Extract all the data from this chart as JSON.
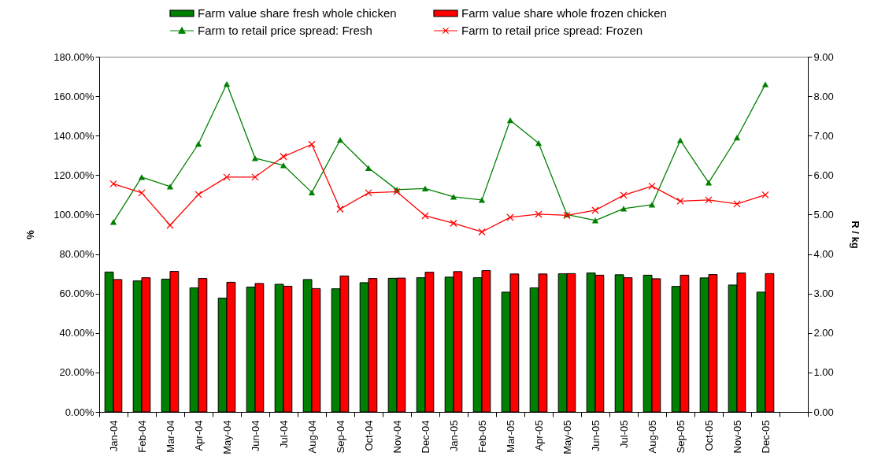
{
  "chart_data": {
    "type": "bar",
    "categories": [
      "Jan-04",
      "Feb-04",
      "Mar-04",
      "Apr-04",
      "May-04",
      "Jun-04",
      "Jul-04",
      "Aug-04",
      "Sep-04",
      "Oct-04",
      "Nov-04",
      "Dec-04",
      "Jan-05",
      "Feb-05",
      "Mar-05",
      "Apr-05",
      "May-05",
      "Jun-05",
      "Jul-05",
      "Aug-05",
      "Sep-05",
      "Oct-05",
      "Nov-05",
      "Dec-05",
      null
    ],
    "ylabel": "%",
    "y2label": "R / kg",
    "ylim": [
      0,
      180
    ],
    "yticks": [
      {
        "value": 0,
        "label": "0.00%"
      },
      {
        "value": 20,
        "label": "20.00%"
      },
      {
        "value": 40,
        "label": "40.00%"
      },
      {
        "value": 60,
        "label": "60.00%"
      },
      {
        "value": 80,
        "label": "80.00%"
      },
      {
        "value": 100,
        "label": "100.00%"
      },
      {
        "value": 120,
        "label": "120.00%"
      },
      {
        "value": 140,
        "label": "140.00%"
      },
      {
        "value": 160,
        "label": "160.00%"
      },
      {
        "value": 180,
        "label": "180.00%"
      }
    ],
    "y2lim": [
      0,
      9
    ],
    "y2ticks": [
      {
        "value": 0,
        "label": "0.00"
      },
      {
        "value": 1,
        "label": "1.00"
      },
      {
        "value": 2,
        "label": "2.00"
      },
      {
        "value": 3,
        "label": "3.00"
      },
      {
        "value": 4,
        "label": "4.00"
      },
      {
        "value": 5,
        "label": "5.00"
      },
      {
        "value": 6,
        "label": "6.00"
      },
      {
        "value": 7,
        "label": "7.00"
      },
      {
        "value": 8,
        "label": "8.00"
      },
      {
        "value": 9,
        "label": "9.00"
      }
    ],
    "legend": "top",
    "series": [
      {
        "name": "Farm value share fresh whole chicken",
        "color": "#008000",
        "values": [
          70.9,
          66.4,
          67.3,
          62.9,
          57.7,
          63.3,
          64.7,
          67.1,
          62.4,
          65.5,
          67.7,
          68.0,
          68.3,
          68.0,
          60.7,
          62.9,
          70.0,
          70.4,
          69.5,
          69.3,
          63.6,
          67.9,
          64.3,
          60.7,
          null
        ]
      },
      {
        "name": "Farm value share whole frozen chicken",
        "color": "#ff0000",
        "values": [
          67.1,
          68.0,
          71.2,
          67.6,
          65.7,
          65.1,
          63.7,
          62.5,
          68.9,
          67.6,
          67.8,
          70.8,
          71.1,
          71.6,
          69.9,
          69.9,
          70.1,
          69.3,
          68.0,
          67.5,
          69.3,
          69.6,
          70.4,
          70.1,
          null
        ]
      },
      {
        "name": "Farm to retail price spread: Fresh",
        "type": "line",
        "axis": "y2",
        "marker": "triangle",
        "color": "#008000",
        "values": [
          4.81,
          5.95,
          5.71,
          6.79,
          8.31,
          6.43,
          6.25,
          5.56,
          6.89,
          6.18,
          5.63,
          5.66,
          5.45,
          5.37,
          7.39,
          6.81,
          5.0,
          4.85,
          5.15,
          5.25,
          6.88,
          5.81,
          6.95,
          8.3,
          null
        ]
      },
      {
        "name": "Farm to retail price spread: Frozen",
        "type": "line",
        "axis": "y2",
        "marker": "cross",
        "color": "#ff0000",
        "values": [
          5.78,
          5.55,
          4.73,
          5.51,
          5.95,
          5.95,
          6.47,
          6.78,
          5.14,
          5.55,
          5.58,
          4.97,
          4.78,
          4.56,
          4.93,
          5.01,
          4.98,
          5.11,
          5.49,
          5.72,
          5.34,
          5.37,
          5.27,
          5.5,
          null
        ]
      }
    ]
  }
}
